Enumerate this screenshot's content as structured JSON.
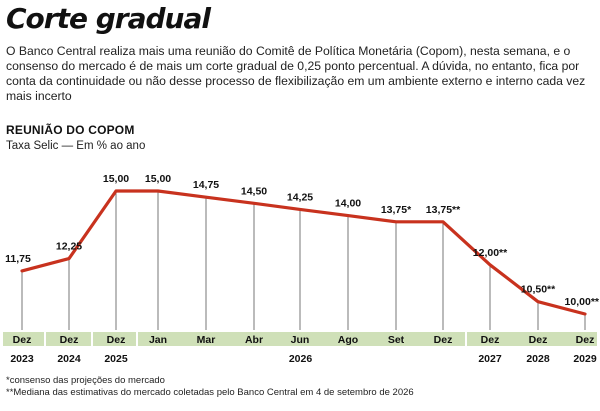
{
  "headline": "Corte gradual",
  "lede": "O Banco Central realiza mais uma reunião do Comitê de Política Monetária (Copom), nesta semana, e o consenso do mercado é de mais um corte gradual de 0,25 ponto percentual. A dúvida, no entanto, fica por conta da continuidade ou não desse processo de flexibilização em um ambiente externo e interno cada vez mais incerto",
  "kicker": "REUNIÃO DO COPOM",
  "subtitle": "Taxa Selic — Em % ao ano",
  "footnotes": [
    "*consenso das projeções do mercado",
    "**Mediana das estimativas do mercado coletadas pelo Banco Central em 4 de setembro de 2026"
  ],
  "colors": {
    "line": "#c8321e",
    "band": "#cfe0b8",
    "drop": "#555555"
  },
  "chart_data": {
    "type": "line",
    "ylabel": "",
    "ylim": [
      10,
      15
    ],
    "points": [
      {
        "month": "Dez",
        "year": "2023",
        "value": 11.75,
        "label": "11,75"
      },
      {
        "month": "Dez",
        "year": "2024",
        "value": 12.25,
        "label": "12,25"
      },
      {
        "month": "Dez",
        "year": "2025",
        "value": 15.0,
        "label": "15,00"
      },
      {
        "month": "Jan",
        "year": "",
        "value": 15.0,
        "label": "15,00"
      },
      {
        "month": "Mar",
        "year": "",
        "value": 14.75,
        "label": "14,75"
      },
      {
        "month": "Abr",
        "year": "",
        "value": 14.5,
        "label": "14,50"
      },
      {
        "month": "Jun",
        "year": "",
        "value": 14.25,
        "label": "14,25"
      },
      {
        "month": "Ago",
        "year": "",
        "value": 14.0,
        "label": "14,00"
      },
      {
        "month": "Set",
        "year": "",
        "value": 13.75,
        "label": "13,75*"
      },
      {
        "month": "Dez",
        "year": "",
        "value": 13.75,
        "label": "13,75**"
      },
      {
        "month": "Dez",
        "year": "2027",
        "value": 12.0,
        "label": "12,00**"
      },
      {
        "month": "Dez",
        "year": "2028",
        "value": 10.5,
        "label": "10,50**"
      },
      {
        "month": "Dez",
        "year": "2029",
        "value": 10.0,
        "label": "10,00**"
      }
    ],
    "group_year": "2026"
  }
}
